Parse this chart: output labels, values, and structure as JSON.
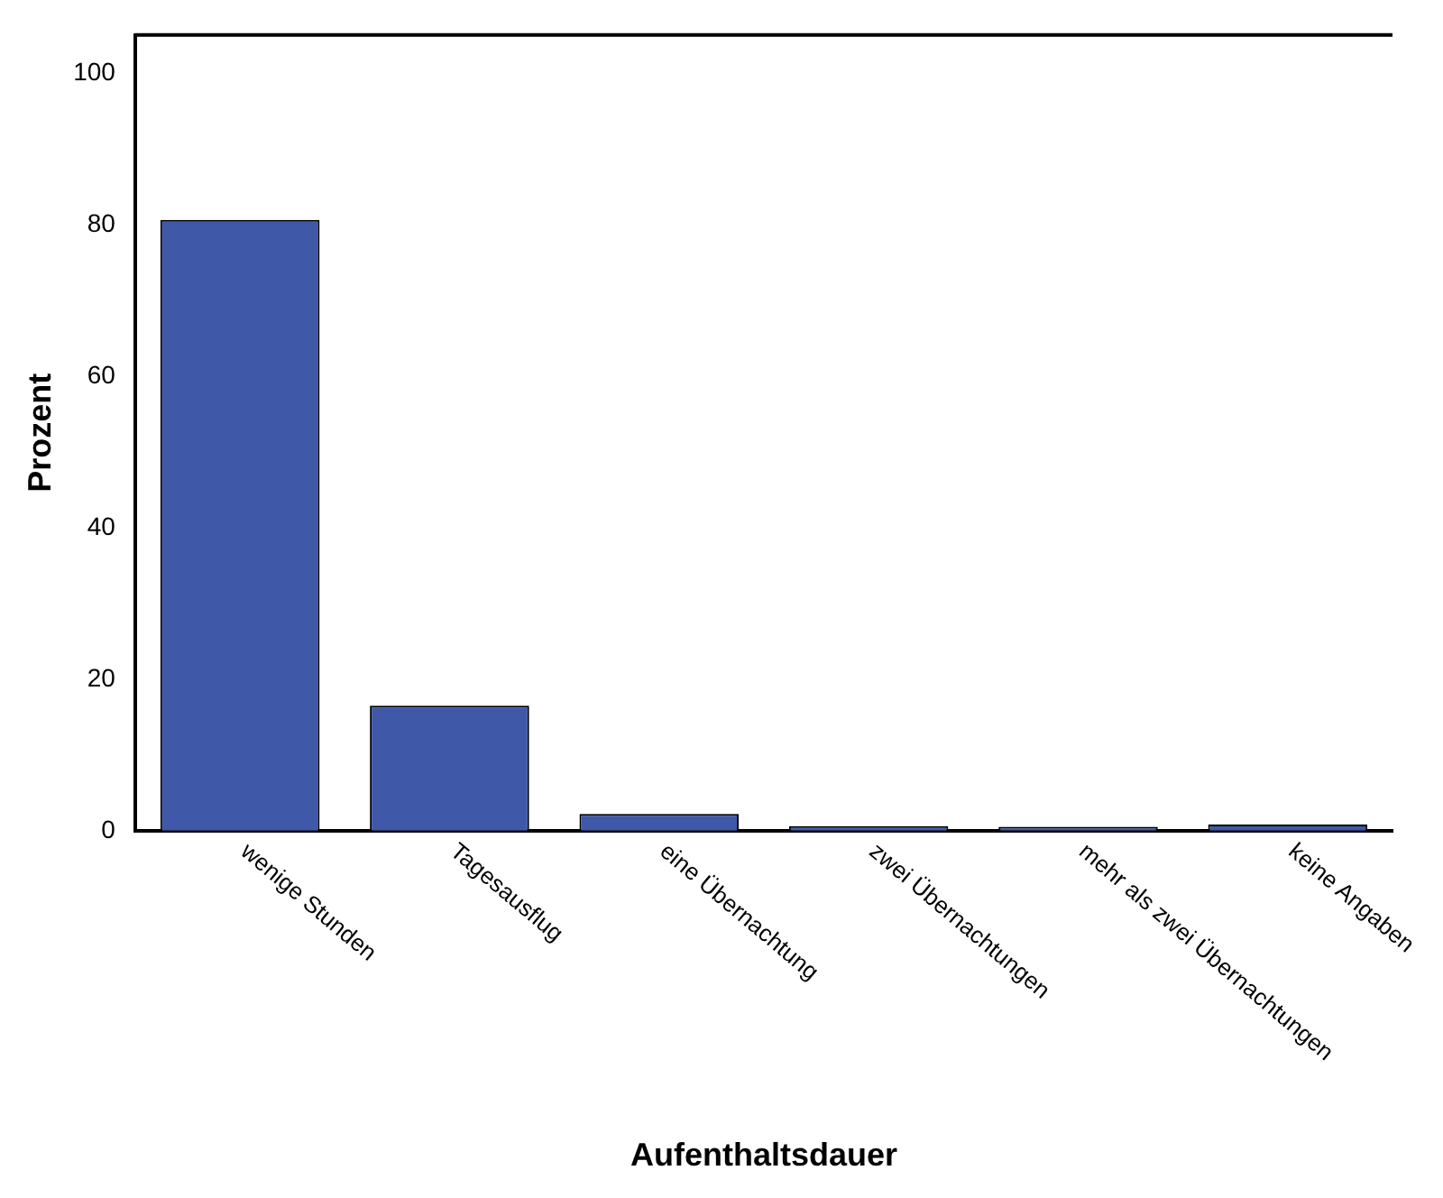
{
  "chart_data": {
    "type": "bar",
    "xlabel": "Aufenthaltsdauer",
    "ylabel": "Prozent",
    "categories": [
      "wenige Stunden",
      "Tagesausflug",
      "eine Übernachtung",
      "zwei Übernachtungen",
      "mehr als zwei Übernachtungen",
      "keine Angaben"
    ],
    "values": [
      80.6,
      16.5,
      2.2,
      0.6,
      0.5,
      0.8
    ],
    "color": "#3f58a8",
    "ylim": [
      0,
      105
    ],
    "yticks": [
      0,
      20,
      40,
      60,
      80,
      100
    ],
    "grid": false,
    "legend": false
  }
}
